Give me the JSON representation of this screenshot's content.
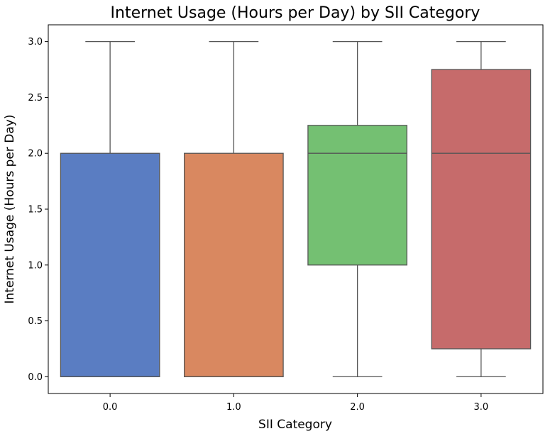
{
  "chart_data": {
    "type": "box",
    "title": "Internet Usage (Hours per Day) by SII Category",
    "xlabel": "SII Category",
    "ylabel": "Internet Usage (Hours per Day)",
    "ylim": [
      -0.15,
      3.15
    ],
    "yticks": [
      0.0,
      0.5,
      1.0,
      1.5,
      2.0,
      2.5,
      3.0
    ],
    "ytick_labels": [
      "0.0",
      "0.5",
      "1.0",
      "1.5",
      "2.0",
      "2.5",
      "3.0"
    ],
    "categories": [
      "0.0",
      "1.0",
      "2.0",
      "3.0"
    ],
    "boxes": [
      {
        "category": "0.0",
        "whisker_low": 0.0,
        "q1": 0.0,
        "median": 0.0,
        "q3": 2.0,
        "whisker_high": 3.0,
        "color": "#5A7DC2"
      },
      {
        "category": "1.0",
        "whisker_low": 0.0,
        "q1": 0.0,
        "median": 0.0,
        "q3": 2.0,
        "whisker_high": 3.0,
        "color": "#D98860"
      },
      {
        "category": "2.0",
        "whisker_low": 0.0,
        "q1": 1.0,
        "median": 2.0,
        "q3": 2.25,
        "whisker_high": 3.0,
        "color": "#74C072"
      },
      {
        "category": "3.0",
        "whisker_low": 0.0,
        "q1": 0.25,
        "median": 2.0,
        "q3": 2.75,
        "whisker_high": 3.0,
        "color": "#C66B6B"
      }
    ],
    "grid": false,
    "line_color": "#555555"
  }
}
